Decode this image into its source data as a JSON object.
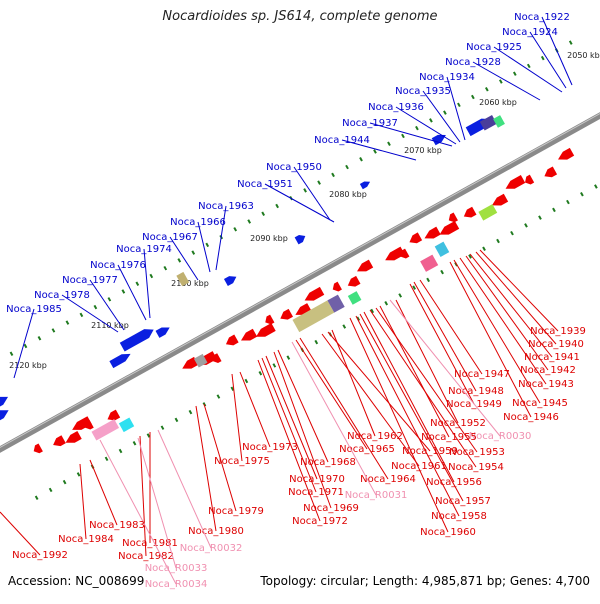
{
  "header": {
    "title": "Nocardioides sp. JS614, complete genome"
  },
  "footer": {
    "accession": "Accession: NC_008699",
    "summary": "Topology: circular; Length: 4,985,871 bp; Genes: 4,700"
  },
  "colors": {
    "backbone": "#8a8a8a",
    "forward_label": "#0000cc",
    "reverse_label": "#dd0000",
    "rna_label": "#f090b0",
    "tick": "#1f7a1f",
    "forward_gene": "#0a1fe0",
    "reverse_gene": "#ee0000"
  },
  "scale": {
    "ticks": [
      "2050 kbp",
      "2060 kbp",
      "2070 kbp",
      "2080 kbp",
      "2090 kbp",
      "2100 kbp",
      "2110 kbp",
      "2120 kbp"
    ]
  },
  "forward_labels": [
    "Noca_1922",
    "Noca_1924",
    "Noca_1925",
    "Noca_1928",
    "Noca_1934",
    "Noca_1935",
    "Noca_1936",
    "Noca_1937",
    "Noca_1944",
    "Noca_1950",
    "Noca_1951",
    "Noca_1963",
    "Noca_1966",
    "Noca_1967",
    "Noca_1974",
    "Noca_1976",
    "Noca_1977",
    "Noca_1978",
    "Noca_1985"
  ],
  "reverse_labels": [
    "Noca_1939",
    "Noca_1940",
    "Noca_1941",
    "Noca_1942",
    "Noca_1943",
    "Noca_1945",
    "Noca_1946",
    "Noca_1947",
    "Noca_1948",
    "Noca_1949",
    "Noca_1952",
    "Noca_R0030",
    "Noca_1955",
    "Noca_1953",
    "Noca_1954",
    "Noca_1956",
    "Noca_1957",
    "Noca_1958",
    "Noca_1960",
    "Noca_1962",
    "Noca_1959",
    "Noca_1961",
    "Noca_1964",
    "Noca_1965",
    "Noca_R0031",
    "Noca_1968",
    "Noca_1969",
    "Noca_1970",
    "Noca_1971",
    "Noca_1972",
    "Noca_1973",
    "Noca_1975",
    "Noca_1979",
    "Noca_1980",
    "Noca_R0032",
    "Noca_1981",
    "Noca_1982",
    "Noca_R0033",
    "Noca_R0034",
    "Noca_1983",
    "Noca_1984",
    "Noca_1992"
  ]
}
